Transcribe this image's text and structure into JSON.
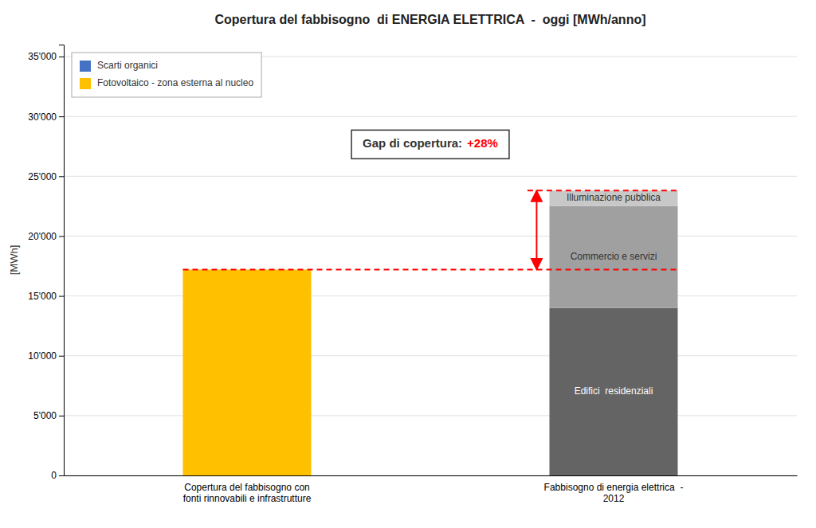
{
  "chart_data": {
    "type": "bar",
    "title": "Copertura del fabbisogno  di ENERGIA ELETTRICA  -  oggi [MWh/anno]",
    "ylabel": "[MWh]",
    "categories": [
      "Copertura del fabbisogno con\nfonti rinnovabili e infrastrutture",
      "Fabbisogno di energia elettrica  -\n2012"
    ],
    "stacked": true,
    "series": [
      {
        "name": "Scarti organici",
        "color": "#4472C4",
        "values": [
          null,
          null
        ]
      },
      {
        "name": "Fotovoltaico - zona esterna al nucleo",
        "color": "#FFC000",
        "values": [
          17200,
          null
        ]
      },
      {
        "name": "Edifici  residenziali",
        "color": "#646464",
        "values": [
          null,
          14000
        ],
        "legend": false
      },
      {
        "name": "Commercio e servizi",
        "color": "#A0A0A0",
        "values": [
          null,
          8500
        ],
        "legend": false
      },
      {
        "name": "Illuminazione pubblica",
        "color": "#C8C8C8",
        "values": [
          null,
          1300
        ],
        "legend": false
      }
    ],
    "ylim": [
      0,
      36000
    ],
    "yticks": [
      0,
      {
        "value": 5000,
        "label": "5'000"
      },
      {
        "value": 10000,
        "label": "10'000"
      },
      {
        "value": 15000,
        "label": "15'000"
      },
      {
        "value": 20000,
        "label": "20'000"
      },
      {
        "value": 25000,
        "label": "25'000"
      },
      {
        "value": 30000,
        "label": "30'000"
      },
      {
        "value": 35000,
        "label": "35'000"
      }
    ],
    "grid": true,
    "legend": "upper left",
    "annotations": [
      {
        "text": "Gap di copertura:",
        "highlight": "+28%",
        "from": 17200,
        "to": 23800,
        "color": "red"
      }
    ]
  }
}
